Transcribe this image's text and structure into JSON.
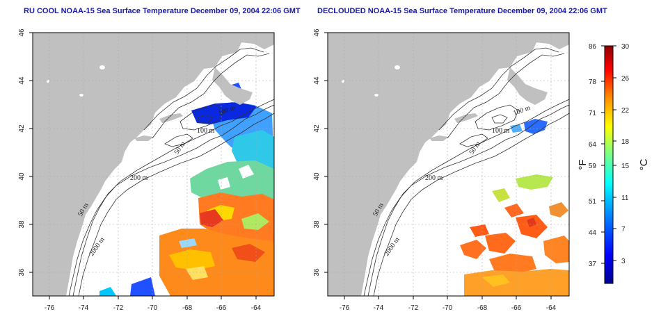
{
  "titles": {
    "left": "RU COOL NOAA-15 Sea Surface Temperature December 09, 2004 22:06 GMT",
    "right": "DECLOUDED NOAA-15 Sea Surface Temperature December 09, 2004 22:06 GMT"
  },
  "map_axes": {
    "lon_ticks": [
      "-76",
      "-74",
      "-72",
      "-70",
      "-68",
      "-66",
      "-64"
    ],
    "lat_ticks": [
      "36",
      "38",
      "40",
      "42",
      "44",
      "46"
    ],
    "lon_range": [
      -77,
      -63
    ],
    "lat_range": [
      35,
      46
    ]
  },
  "depth_contours": [
    "50 m",
    "100 m",
    "200 m",
    "2000 m"
  ],
  "contour_labels": {
    "left": [
      "100 m",
      "100 m",
      "50 m",
      "200 m",
      "50 m",
      "2000 m"
    ],
    "right": [
      "100 m",
      "100 m",
      "50 m",
      "200 m",
      "50 m",
      "2000 m"
    ]
  },
  "colorbar": {
    "fahrenheit_ticks": [
      "86",
      "78",
      "71",
      "64",
      "59",
      "51",
      "44",
      "37"
    ],
    "celsius_ticks": [
      "30",
      "26",
      "22",
      "18",
      "15",
      "11",
      "7",
      "3"
    ],
    "celsius_range": [
      0,
      30
    ],
    "fahrenheit_unit": "°F",
    "celsius_unit": "°C"
  },
  "colors": {
    "land": "#c0c0c0",
    "water": "#ffffff",
    "title": "#1a1aa6",
    "grid": "#aaaaaa"
  }
}
